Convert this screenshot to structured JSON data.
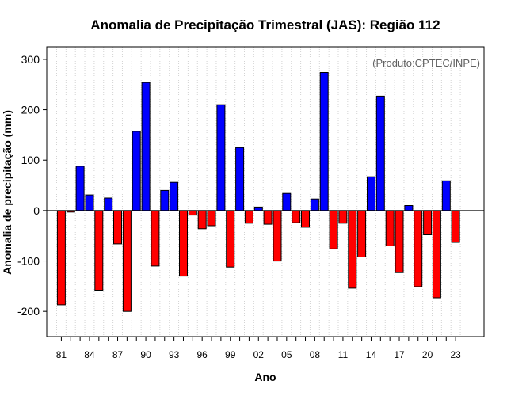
{
  "chart_data": {
    "type": "bar",
    "title": "Anomalia de Precipitação Trimestral (JAS): Região 112",
    "xlabel": "Ano",
    "ylabel": "Anomalia de precipitação (mm)",
    "credit": "(Produto:CPTEC/INPE)",
    "ylim": [
      -250,
      325
    ],
    "yticks": [
      -200,
      -100,
      0,
      100,
      200,
      300
    ],
    "x": [
      1981,
      1982,
      1983,
      1984,
      1985,
      1986,
      1987,
      1988,
      1989,
      1990,
      1991,
      1992,
      1993,
      1994,
      1995,
      1996,
      1997,
      1998,
      1999,
      2000,
      2001,
      2002,
      2003,
      2004,
      2005,
      2006,
      2007,
      2008,
      2009,
      2010,
      2011,
      2012,
      2013,
      2014,
      2015,
      2016,
      2017,
      2018,
      2019,
      2020,
      2021,
      2022,
      2023
    ],
    "values": [
      -187,
      -3,
      88,
      31,
      -158,
      25,
      -66,
      -200,
      157,
      254,
      -110,
      40,
      56,
      -130,
      -9,
      -36,
      -30,
      210,
      -112,
      125,
      -25,
      7,
      -27,
      -100,
      34,
      -24,
      -33,
      23,
      274,
      -76,
      -25,
      -154,
      -92,
      67,
      227,
      -70,
      -123,
      10,
      -151,
      -48,
      -173,
      59,
      -63
    ],
    "xtick_labels": [
      "81",
      "84",
      "87",
      "90",
      "93",
      "96",
      "99",
      "02",
      "05",
      "08",
      "11",
      "14",
      "17",
      "20",
      "23"
    ],
    "xtick_years": [
      1981,
      1984,
      1987,
      1990,
      1993,
      1996,
      1999,
      2002,
      2005,
      2008,
      2011,
      2014,
      2017,
      2020,
      2023
    ],
    "colors": {
      "positive": "#0000ff",
      "negative": "#ff0000",
      "grid": "#d3d3d3",
      "zero_line": "#000000"
    },
    "grid": "vertical-dotted",
    "legend": "none"
  }
}
